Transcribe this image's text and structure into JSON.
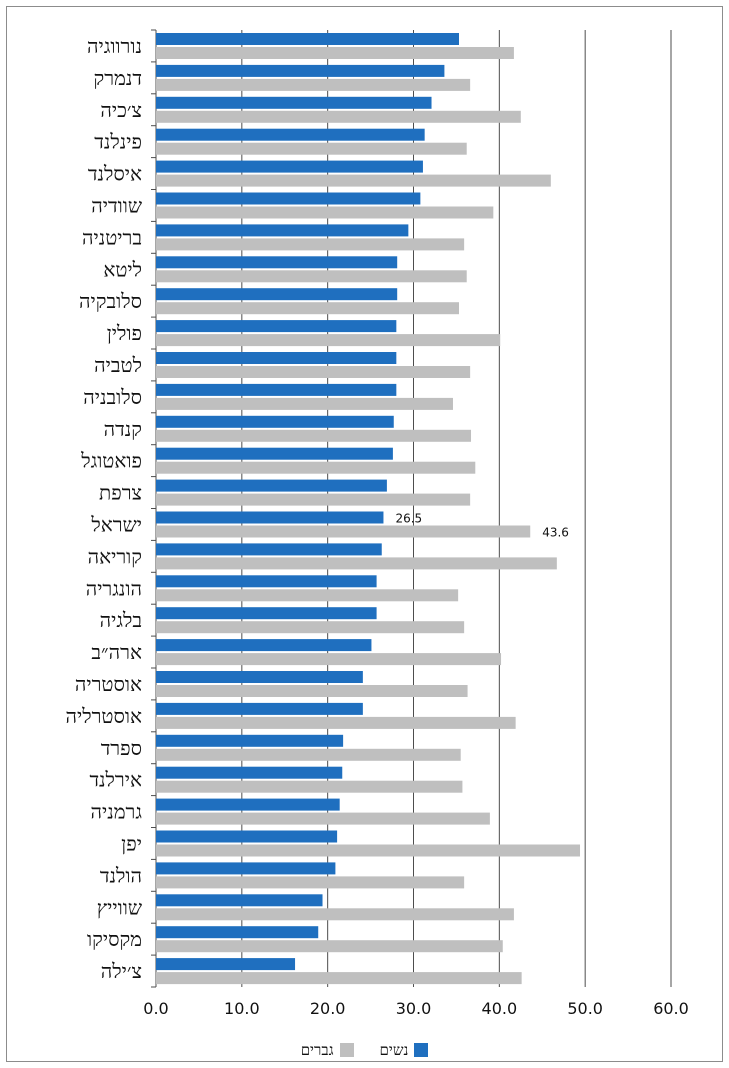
{
  "chart_data": {
    "type": "bar",
    "orientation": "horizontal",
    "categories": [
      "נורווגיה",
      "דנמרק",
      "צ׳כיה",
      "פינלנד",
      "איסלנד",
      "שוודיה",
      "בריטניה",
      "ליטא",
      "סלובקיה",
      "פולין",
      "לטביה",
      "סלובניה",
      "קנדה",
      "פואטוגל",
      "צרפת",
      "ישראל",
      "קוריאה",
      "הונגריה",
      "בלגיה",
      "ארה״ב",
      "אוסטריה",
      "אוסטרליה",
      "ספרד",
      "אירלנד",
      "גרמניה",
      "יפן",
      "הולנד",
      "שווייץ",
      "מקסיקו",
      "צ׳ילה"
    ],
    "series": [
      {
        "name": "נשים",
        "color": "#1f6fbf",
        "values": [
          35.3,
          33.6,
          32.1,
          31.3,
          31.1,
          30.8,
          29.4,
          28.1,
          28.1,
          28.0,
          28.0,
          28.0,
          27.7,
          27.6,
          26.9,
          26.5,
          26.3,
          25.7,
          25.7,
          25.1,
          24.1,
          24.1,
          21.8,
          21.7,
          21.4,
          21.1,
          20.9,
          19.4,
          18.9,
          16.2
        ]
      },
      {
        "name": "גברים",
        "color": "#bfbfbf",
        "values": [
          41.7,
          36.6,
          42.5,
          36.2,
          46.0,
          39.3,
          35.9,
          36.2,
          35.3,
          40.1,
          36.6,
          34.6,
          36.7,
          37.2,
          36.6,
          43.6,
          46.7,
          35.2,
          35.9,
          40.2,
          36.3,
          41.9,
          35.5,
          35.7,
          38.9,
          49.4,
          35.9,
          41.7,
          40.4,
          42.6
        ]
      }
    ],
    "data_labels": [
      {
        "category": "ישראל",
        "series": "נשים",
        "text": "26.5"
      },
      {
        "category": "ישראל",
        "series": "גברים",
        "text": "43.6"
      }
    ],
    "xlim": [
      0,
      60
    ],
    "x_ticks": [
      "0.0",
      "10.0",
      "20.0",
      "30.0",
      "40.0",
      "50.0",
      "60.0"
    ],
    "x_tick_values": [
      0,
      10,
      20,
      30,
      40,
      50,
      60
    ],
    "grid": "vertical",
    "legend_position": "bottom",
    "title": "",
    "xlabel": "",
    "ylabel": ""
  }
}
